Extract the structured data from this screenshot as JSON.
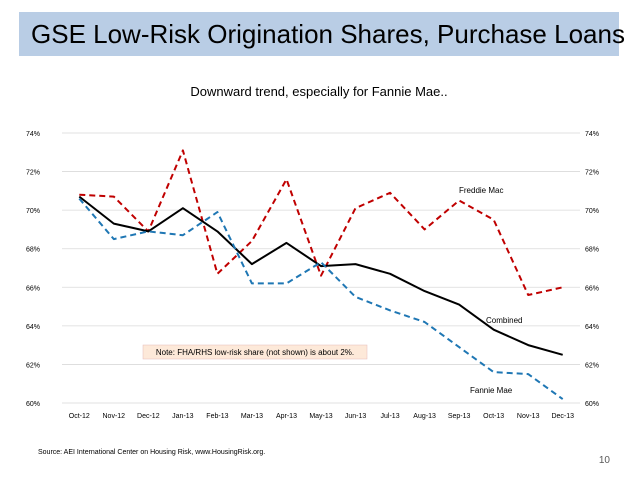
{
  "slide": {
    "title": "GSE Low-Risk Origination Shares, Purchase Loans",
    "subtitle": "Downward trend, especially for Fannie Mae..",
    "source": "Source: AEI International Center on Housing Risk, www.HousingRisk.org.",
    "page_number": "10"
  },
  "chart_data": {
    "type": "line",
    "categories": [
      "Oct-12",
      "Nov-12",
      "Dec-12",
      "Jan-13",
      "Feb-13",
      "Mar-13",
      "Apr-13",
      "May-13",
      "Jun-13",
      "Jul-13",
      "Aug-13",
      "Sep-13",
      "Oct-13",
      "Nov-13",
      "Dec-13"
    ],
    "series": [
      {
        "name": "Freddie Mac",
        "color": "#c00000",
        "style": "dashed",
        "values": [
          70.8,
          70.7,
          68.9,
          73.1,
          66.7,
          68.4,
          71.6,
          66.6,
          70.1,
          70.9,
          69.0,
          70.5,
          69.5,
          65.6,
          66.0
        ]
      },
      {
        "name": "Combined",
        "color": "#000000",
        "style": "solid",
        "values": [
          70.7,
          69.3,
          68.9,
          70.1,
          68.9,
          67.2,
          68.3,
          67.1,
          67.2,
          66.7,
          65.8,
          65.1,
          63.8,
          63.0,
          62.5
        ]
      },
      {
        "name": "Fannie Mae",
        "color": "#1f77b4",
        "style": "dashed",
        "values": [
          70.6,
          68.5,
          68.9,
          68.7,
          69.9,
          66.2,
          66.2,
          67.3,
          65.5,
          64.8,
          64.2,
          62.9,
          61.6,
          61.5,
          60.2
        ]
      }
    ],
    "series_labels": {
      "freddie": "Freddie Mac",
      "combined": "Combined",
      "fannie": "Fannie Mae"
    },
    "left_ticks": [
      "60%",
      "62%",
      "64%",
      "66%",
      "68%",
      "70%",
      "72%",
      "74%"
    ],
    "right_ticks": [
      "60%",
      "62%",
      "64%",
      "66%",
      "68%",
      "70%",
      "72%",
      "74%"
    ],
    "ylim": [
      60,
      74
    ],
    "note": "Note: FHA/RHS low-risk share (not shown) is about 2%.",
    "xlabel": "",
    "ylabel": ""
  }
}
